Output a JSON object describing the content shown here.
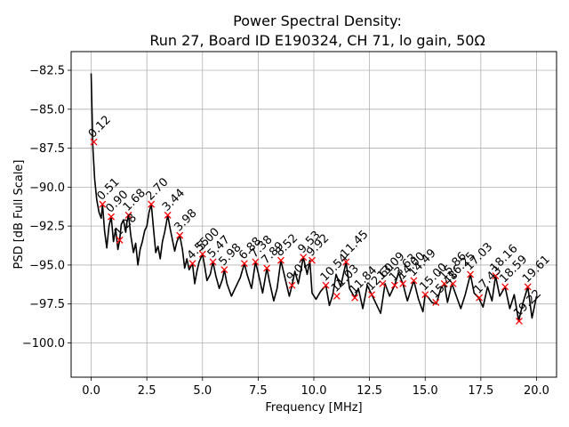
{
  "chart_data": {
    "type": "line",
    "title": [
      "Power Spectral Density:",
      "Run 27, Board ID E190324, CH 71, lo gain, 50Ω"
    ],
    "xlabel": "Frequency [MHz]",
    "ylabel": "PSD [dB Full Scale]",
    "xlim": [
      -0.9,
      20.9
    ],
    "ylim": [
      -102.2,
      -81.3
    ],
    "grid": true,
    "x_ticks": [
      0,
      2.5,
      5,
      7.5,
      10,
      12.5,
      15,
      17.5,
      20
    ],
    "x_tick_labels": [
      "0.0",
      "2.5",
      "5.0",
      "7.5",
      "10.0",
      "12.5",
      "15.0",
      "17.5",
      "20.0"
    ],
    "y_ticks": [
      -100,
      -97.5,
      -95,
      -92.5,
      -90,
      -87.5,
      -85,
      -82.5
    ],
    "y_tick_labels": [
      "−100.0",
      "−97.5",
      "−95.0",
      "−92.5",
      "−90.0",
      "−87.5",
      "−85.0",
      "−82.5"
    ],
    "line_color": "#000000",
    "marker_color": "#ff0000",
    "series": [
      {
        "x": [
          0.0,
          0.08,
          0.16,
          0.25,
          0.35,
          0.45,
          0.51,
          0.6,
          0.7,
          0.8,
          0.9,
          1.0,
          1.1,
          1.2,
          1.28,
          1.35,
          1.45,
          1.55,
          1.6,
          1.68,
          1.78,
          1.9,
          2.0,
          2.1,
          2.2,
          2.3,
          2.4,
          2.5,
          2.6,
          2.7,
          2.8,
          2.9,
          3.0,
          3.1,
          3.2,
          3.3,
          3.44,
          3.55,
          3.65,
          3.75,
          3.85,
          3.98,
          4.1,
          4.2,
          4.3,
          4.4,
          4.55,
          4.65,
          4.75,
          4.85,
          5.0,
          5.1,
          5.2,
          5.35,
          5.47,
          5.6,
          5.75,
          5.9,
          5.98,
          6.1,
          6.3,
          6.5,
          6.7,
          6.88,
          7.0,
          7.2,
          7.38,
          7.5,
          7.7,
          7.89,
          8.0,
          8.2,
          8.35,
          8.52,
          8.7,
          8.9,
          9.02,
          9.15,
          9.3,
          9.53,
          9.7,
          9.82,
          9.92,
          10.1,
          10.3,
          10.54,
          10.7,
          10.85,
          11.0,
          11.2,
          11.45,
          11.6,
          11.84,
          12.0,
          12.2,
          12.4,
          12.6,
          12.8,
          13.0,
          13.2,
          13.4,
          13.63,
          13.8,
          14.0,
          14.2,
          14.49,
          14.7,
          14.9,
          15.0,
          15.15,
          15.3,
          15.5,
          15.7,
          15.86,
          16.0,
          16.2,
          16.4,
          16.6,
          16.8,
          17.03,
          17.2,
          17.4,
          17.6,
          17.8,
          18.0,
          18.16,
          18.35,
          18.59,
          18.8,
          19.0,
          19.2,
          19.4,
          19.61,
          19.8,
          20.0
        ],
        "y": [
          -82.7,
          -87.5,
          -89.5,
          -90.8,
          -91.6,
          -92.0,
          -91.1,
          -92.8,
          -93.9,
          -92.5,
          -91.9,
          -93.5,
          -92.7,
          -94.0,
          -93.4,
          -92.4,
          -92.1,
          -92.9,
          -92.3,
          -91.8,
          -93.1,
          -94.2,
          -93.6,
          -95.0,
          -94.0,
          -93.5,
          -92.8,
          -92.5,
          -91.6,
          -91.1,
          -92.7,
          -94.2,
          -93.8,
          -94.6,
          -93.5,
          -92.9,
          -91.8,
          -92.7,
          -93.4,
          -94.1,
          -93.5,
          -93.1,
          -94.0,
          -95.2,
          -94.6,
          -95.3,
          -94.9,
          -96.2,
          -95.4,
          -94.8,
          -94.3,
          -95.1,
          -96.0,
          -95.6,
          -94.8,
          -95.7,
          -96.5,
          -95.9,
          -95.3,
          -96.2,
          -97.0,
          -96.4,
          -95.8,
          -94.9,
          -95.6,
          -96.5,
          -94.8,
          -95.5,
          -96.8,
          -95.2,
          -96.0,
          -97.3,
          -96.5,
          -94.7,
          -95.8,
          -97.0,
          -96.3,
          -95.4,
          -96.2,
          -94.5,
          -95.6,
          -94.7,
          -96.8,
          -97.2,
          -96.7,
          -96.3,
          -97.6,
          -96.9,
          -95.6,
          -96.4,
          -94.8,
          -96.5,
          -97.1,
          -96.5,
          -97.8,
          -96.3,
          -96.9,
          -97.5,
          -98.1,
          -96.2,
          -97.0,
          -96.3,
          -95.5,
          -96.2,
          -97.3,
          -96.0,
          -97.2,
          -98.0,
          -96.9,
          -97.1,
          -97.4,
          -97.5,
          -96.5,
          -96.2,
          -97.4,
          -96.2,
          -97.0,
          -97.8,
          -96.9,
          -95.6,
          -96.8,
          -97.1,
          -97.7,
          -96.4,
          -97.3,
          -95.7,
          -97.0,
          -96.4,
          -97.8,
          -96.9,
          -98.6,
          -97.4,
          -96.4,
          -98.4,
          -97.0
        ]
      }
    ],
    "peaks": [
      {
        "x": 0.12,
        "y": -87.1,
        "label": "0.12"
      },
      {
        "x": 0.51,
        "y": -91.1,
        "label": "0.51"
      },
      {
        "x": 0.9,
        "y": -91.9,
        "label": "0.90"
      },
      {
        "x": 1.28,
        "y": -93.4,
        "label": "1.28"
      },
      {
        "x": 1.68,
        "y": -91.8,
        "label": "1.68"
      },
      {
        "x": 2.7,
        "y": -91.1,
        "label": "2.70"
      },
      {
        "x": 3.44,
        "y": -91.8,
        "label": "3.44"
      },
      {
        "x": 3.98,
        "y": -93.1,
        "label": "3.98"
      },
      {
        "x": 4.55,
        "y": -94.9,
        "label": "4.55"
      },
      {
        "x": 5.0,
        "y": -94.3,
        "label": "5.00"
      },
      {
        "x": 5.47,
        "y": -94.8,
        "label": "5.47"
      },
      {
        "x": 5.98,
        "y": -95.3,
        "label": "5.98"
      },
      {
        "x": 6.88,
        "y": -94.9,
        "label": "6.88"
      },
      {
        "x": 7.38,
        "y": -94.8,
        "label": "7.38"
      },
      {
        "x": 7.89,
        "y": -95.2,
        "label": "7.89"
      },
      {
        "x": 8.52,
        "y": -94.7,
        "label": "8.52"
      },
      {
        "x": 9.02,
        "y": -96.3,
        "label": "9.02"
      },
      {
        "x": 9.53,
        "y": -94.5,
        "label": "9.53"
      },
      {
        "x": 9.92,
        "y": -94.7,
        "label": "9.92"
      },
      {
        "x": 10.54,
        "y": -96.3,
        "label": "10.54"
      },
      {
        "x": 11.03,
        "y": -97.0,
        "label": "11.03"
      },
      {
        "x": 11.45,
        "y": -94.8,
        "label": "11.45"
      },
      {
        "x": 11.84,
        "y": -97.1,
        "label": "11.84"
      },
      {
        "x": 12.6,
        "y": -96.9,
        "label": "12.60"
      },
      {
        "x": 13.09,
        "y": -96.2,
        "label": "13.09"
      },
      {
        "x": 13.63,
        "y": -96.3,
        "label": "13.63"
      },
      {
        "x": 14.0,
        "y": -96.2,
        "label": "14.00"
      },
      {
        "x": 14.49,
        "y": -96.0,
        "label": "14.49"
      },
      {
        "x": 15.0,
        "y": -96.9,
        "label": "15.00"
      },
      {
        "x": 15.48,
        "y": -97.4,
        "label": "15.48"
      },
      {
        "x": 15.86,
        "y": -96.2,
        "label": "15.86"
      },
      {
        "x": 16.25,
        "y": -96.2,
        "label": "16.25"
      },
      {
        "x": 17.03,
        "y": -95.6,
        "label": "17.03"
      },
      {
        "x": 17.43,
        "y": -97.1,
        "label": "17.43"
      },
      {
        "x": 18.16,
        "y": -95.7,
        "label": "18.16"
      },
      {
        "x": 18.59,
        "y": -96.4,
        "label": "18.59"
      },
      {
        "x": 19.22,
        "y": -98.6,
        "label": "19.22"
      },
      {
        "x": 19.61,
        "y": -96.4,
        "label": "19.61"
      }
    ]
  }
}
